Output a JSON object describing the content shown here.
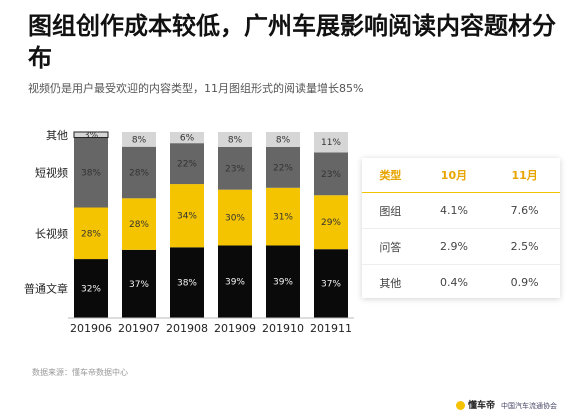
{
  "title": "图组创作成本较低，广州车展影响阅读内容题材分布",
  "subtitle": "视频仍是用户最受欢迎的内容类型，11月图组形式的阅读量增长85%",
  "colors": {
    "普通文章": "#0a0a0a",
    "长视频": "#f5c400",
    "短视频": "#666666",
    "其他": "#d6d6d6"
  },
  "chart_data": {
    "type": "bar",
    "stacked": true,
    "categories": [
      "201906",
      "201907",
      "201908",
      "201909",
      "201910",
      "201911"
    ],
    "series": [
      {
        "name": "普通文章",
        "values": [
          32,
          37,
          38,
          39,
          39,
          37
        ],
        "labels": [
          "32%",
          "37%",
          "38%",
          "39%",
          "39%",
          "37%"
        ]
      },
      {
        "name": "长视频",
        "values": [
          28,
          28,
          34,
          30,
          31,
          29
        ],
        "labels": [
          "28%",
          "28%",
          "34%",
          "30%",
          "31%",
          "29%"
        ]
      },
      {
        "name": "短视频",
        "values": [
          38,
          28,
          22,
          23,
          22,
          23
        ],
        "labels": [
          "38%",
          "28%",
          "22%",
          "23%",
          "22%",
          "23%"
        ]
      },
      {
        "name": "其他",
        "values": [
          3,
          8,
          6,
          8,
          8,
          11
        ],
        "labels": [
          "3%",
          "8%",
          "6%",
          "8%",
          "8%",
          "11%"
        ]
      }
    ],
    "ylim": [
      0,
      100
    ]
  },
  "table": {
    "headers": [
      "类型",
      "10月",
      "11月"
    ],
    "rows": [
      [
        "图组",
        "4.1%",
        "7.6%"
      ],
      [
        "问答",
        "2.9%",
        "2.5%"
      ],
      [
        "其他",
        "0.4%",
        "0.9%"
      ]
    ]
  },
  "source": "数据来源：懂车帝数据中心",
  "footer": {
    "brand": "懂车帝",
    "org": "中国汽车流通协会"
  }
}
